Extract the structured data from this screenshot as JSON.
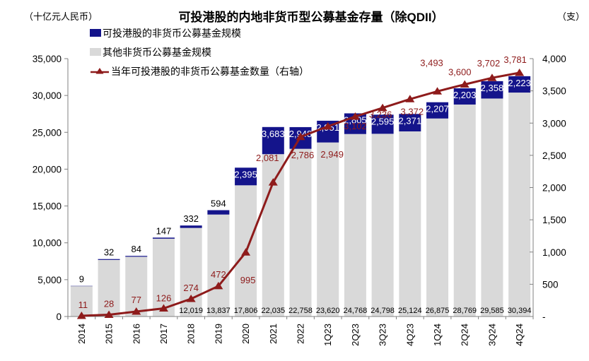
{
  "header": {
    "unit_left": "（十亿元人民币）",
    "title": "可投港股的内地非货币型公募基金存量（除QDII）",
    "unit_right": "（支）"
  },
  "legend": {
    "items": [
      {
        "label": "可投港股的非货币公募基金规模",
        "swatch": "navy-square"
      },
      {
        "label": "其他非货币公募基金规模",
        "swatch": "gray-square"
      },
      {
        "label": "当年可投港股的非货币公募基金数量（右轴）",
        "swatch": "red-line-triangle"
      }
    ]
  },
  "colors": {
    "navy": "#14148B",
    "gray": "#D9D9D9",
    "red": "#8E1B1B",
    "axis": "#808080",
    "text": "#000000",
    "label_on_navy": "#FFFFFF"
  },
  "chart_data": {
    "type": "bar",
    "subtype": "stacked-bars-with-right-axis-line",
    "title": "可投港股的内地非货币型公募基金存量（除QDII）",
    "categories": [
      "2014",
      "2015",
      "2016",
      "2017",
      "2018",
      "2019",
      "2020",
      "2021",
      "2022",
      "1Q23",
      "2Q23",
      "3Q23",
      "4Q23",
      "1Q24",
      "2Q24",
      "3Q24",
      "4Q24"
    ],
    "series": [
      {
        "name": "可投港股的非货币公募基金规模",
        "type": "bar",
        "axis": "left",
        "color": "navy",
        "values": [
          9,
          32,
          84,
          147,
          332,
          594,
          2395,
          3683,
          2948,
          2951,
          2805,
          2595,
          2371,
          2207,
          2203,
          2358,
          2223
        ],
        "labels": [
          "9",
          "32",
          "84",
          "147",
          "332",
          "594",
          "2,395",
          "3,683",
          "2,948",
          "2,951",
          "2,805",
          "2,595",
          "2,371",
          "2,207",
          "2,203",
          "2,358",
          "2,223"
        ]
      },
      {
        "name": "其他非货币公募基金规模",
        "type": "bar",
        "axis": "left",
        "color": "gray",
        "values": [
          4140,
          7680,
          8110,
          10560,
          12019,
          13837,
          17806,
          22035,
          22758,
          23620,
          24768,
          24798,
          25124,
          26875,
          28769,
          29585,
          30394
        ],
        "labels": [
          "",
          "",
          "",
          "",
          "12,019",
          "13,837",
          "17,806",
          "22,035",
          "22,758",
          "23,620",
          "24,768",
          "24,798",
          "25,124",
          "26,875",
          "28,769",
          "29,585",
          "30,394"
        ]
      },
      {
        "name": "当年可投港股的非货币公募基金数量（右轴）",
        "type": "line",
        "axis": "right",
        "color": "red",
        "marker": "triangle",
        "values": [
          11,
          28,
          77,
          126,
          274,
          472,
          995,
          2081,
          2786,
          2949,
          3102,
          3236,
          3372,
          3493,
          3600,
          3702,
          3781
        ],
        "labels": [
          "11",
          "28",
          "77",
          "126",
          "274",
          "472",
          "995",
          "2,081",
          "2,786",
          "2,949",
          "3,102",
          "3,236",
          "3,372",
          "3,493",
          "3,600",
          "3,702",
          "3,781"
        ]
      }
    ],
    "left_axis": {
      "min": 0,
      "max": 35000,
      "step": 5000,
      "tick_labels": [
        "0",
        "5,000",
        "10,000",
        "15,000",
        "20,000",
        "25,000",
        "30,000",
        "35,000"
      ]
    },
    "right_axis": {
      "min": 0,
      "max": 4000,
      "step": 500,
      "tick_labels": [
        "-",
        "500",
        "1,000",
        "1,500",
        "2,000",
        "2,500",
        "3,000",
        "3,500",
        "4,000"
      ]
    },
    "grid": false,
    "legend_position": "top-left"
  }
}
